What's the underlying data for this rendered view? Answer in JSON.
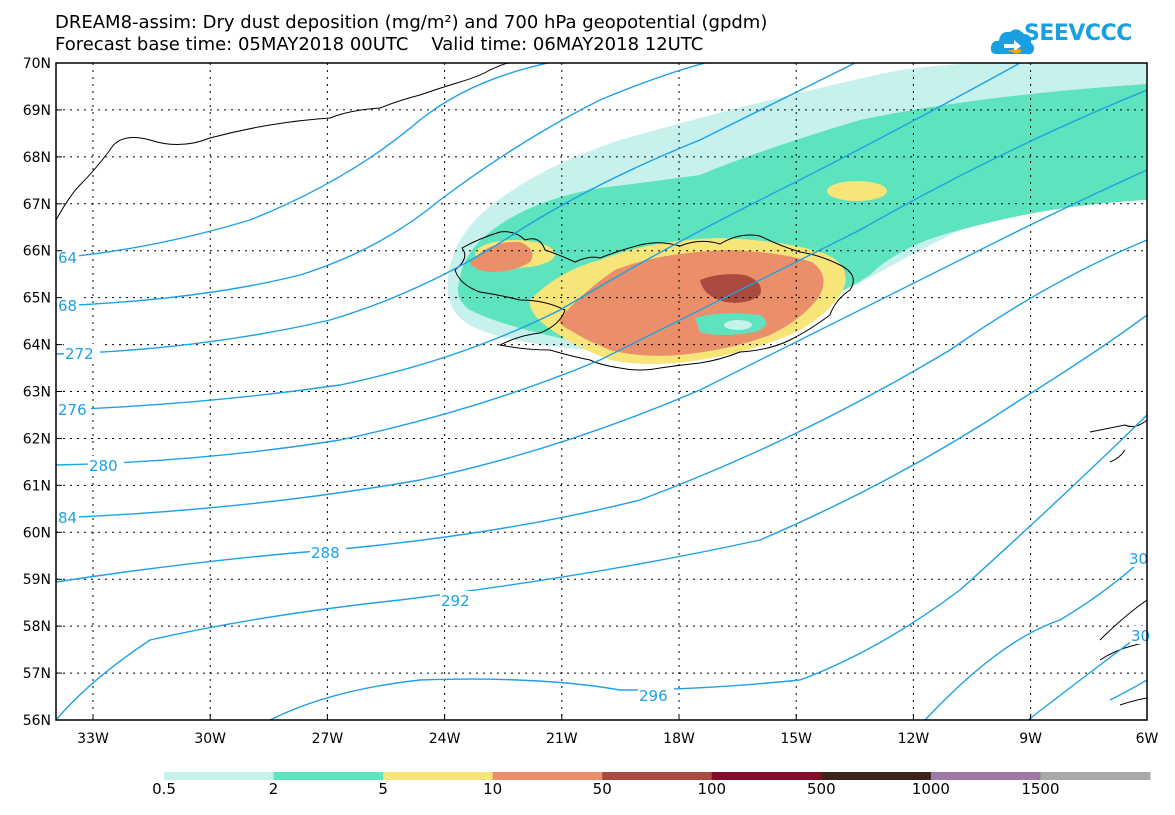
{
  "header": {
    "title_line1": "DREAM8-assim: Dry dust deposition (mg/m²) and 700 hPa geopotential (gpdm)",
    "forecast_label": "Forecast base time: 05MAY2018 00UTC",
    "valid_label": "Valid time: 06MAY2018 12UTC"
  },
  "logo": {
    "text": "SEEVCCC",
    "color": "#1aa0e0"
  },
  "map": {
    "lon_labels": [
      "33W",
      "30W",
      "27W",
      "24W",
      "21W",
      "18W",
      "15W",
      "12W",
      "9W",
      "6W"
    ],
    "lat_labels": [
      "70N",
      "69N",
      "68N",
      "67N",
      "66N",
      "65N",
      "64N",
      "63N",
      "62N",
      "61N",
      "60N",
      "59N",
      "58N",
      "57N",
      "56N"
    ],
    "contour_labels": [
      "64",
      "68",
      "272",
      "276",
      "280",
      "84",
      "288",
      "292",
      "296",
      "30",
      "30"
    ],
    "contour_color": "#1da1e4"
  },
  "colorbar": {
    "labels": [
      "0.5",
      "2",
      "5",
      "10",
      "50",
      "100",
      "500",
      "1000",
      "1500"
    ],
    "colors": [
      "#c6f1ec",
      "#5de3bd",
      "#f7e57a",
      "#ea8f6a",
      "#a94b3e",
      "#820c2a",
      "#3e2418",
      "#9e79a8",
      "#a8a8a8"
    ]
  }
}
